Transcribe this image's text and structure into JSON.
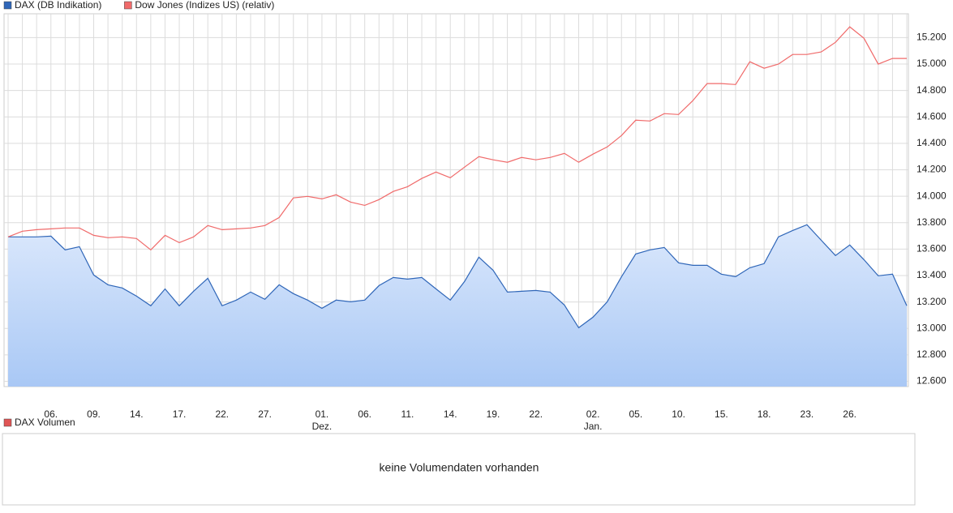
{
  "chart_data": {
    "type": "line",
    "categories": [
      null,
      null,
      null,
      "06.",
      null,
      null,
      "09.",
      null,
      null,
      "14.",
      null,
      null,
      "17.",
      null,
      null,
      "22.",
      null,
      null,
      "27.",
      null,
      null,
      null,
      "01.",
      null,
      null,
      "06.",
      null,
      null,
      "11.",
      null,
      null,
      "14.",
      null,
      null,
      "19.",
      null,
      null,
      "22.",
      null,
      null,
      null,
      "02.",
      null,
      null,
      "05.",
      null,
      null,
      "10.",
      null,
      null,
      "15.",
      null,
      null,
      "18.",
      null,
      null,
      "23.",
      null,
      null,
      "26.",
      null,
      null,
      null,
      null
    ],
    "months": [
      null,
      null,
      null,
      null,
      null,
      null,
      null,
      null,
      null,
      null,
      null,
      null,
      null,
      null,
      null,
      null,
      null,
      null,
      null,
      null,
      null,
      null,
      "Dez.",
      null,
      null,
      null,
      null,
      null,
      null,
      null,
      null,
      null,
      null,
      null,
      null,
      null,
      null,
      null,
      null,
      null,
      null,
      "Jan.",
      null,
      null,
      null,
      null,
      null,
      null,
      null,
      null,
      null,
      null,
      null,
      null,
      null,
      null,
      null,
      null,
      null,
      null,
      null,
      null,
      null,
      null
    ],
    "series": [
      {
        "name": "DAX (DB Indikation)",
        "color": "#2f66b8",
        "fill": true,
        "values": [
          13692,
          13692,
          13692,
          13698,
          13594,
          13618,
          13404,
          13330,
          13306,
          13244,
          13171,
          13299,
          13171,
          13281,
          13379,
          13171,
          13214,
          13275,
          13220,
          13330,
          13263,
          13214,
          13152,
          13214,
          13201,
          13214,
          13324,
          13385,
          13373,
          13385,
          13299,
          13214,
          13355,
          13539,
          13440,
          13275,
          13281,
          13287,
          13275,
          13177,
          13005,
          13085,
          13201,
          13391,
          13563,
          13594,
          13612,
          13496,
          13477,
          13477,
          13410,
          13391,
          13459,
          13490,
          13692,
          13741,
          13784,
          13667,
          13551,
          13631,
          13520,
          13398,
          13410,
          13171
        ]
      },
      {
        "name": "Dow Jones (Indizes US) (relativ)",
        "color": "#f06a6a",
        "fill": false,
        "values": [
          13692,
          13735,
          13747,
          13753,
          13760,
          13760,
          13704,
          13686,
          13692,
          13680,
          13594,
          13704,
          13649,
          13692,
          13778,
          13747,
          13753,
          13760,
          13778,
          13839,
          13987,
          13999,
          13980,
          14011,
          13956,
          13931,
          13974,
          14036,
          14072,
          14134,
          14183,
          14140,
          14220,
          14299,
          14275,
          14257,
          14293,
          14275,
          14293,
          14324,
          14257,
          14318,
          14373,
          14459,
          14575,
          14569,
          14625,
          14618,
          14723,
          14852,
          14852,
          14845,
          15017,
          14968,
          14999,
          15072,
          15072,
          15091,
          15164,
          15281,
          15195,
          14999,
          15042,
          15042
        ]
      }
    ],
    "ylim": [
      12560,
      15380
    ],
    "yticks": [
      {
        "value": 12600,
        "label": "12.600"
      },
      {
        "value": 12800,
        "label": "12.800"
      },
      {
        "value": 13000,
        "label": "13.000"
      },
      {
        "value": 13200,
        "label": "13.200"
      },
      {
        "value": 13400,
        "label": "13.400"
      },
      {
        "value": 13600,
        "label": "13.600"
      },
      {
        "value": 13800,
        "label": "13.800"
      },
      {
        "value": 14000,
        "label": "14.000"
      },
      {
        "value": 14200,
        "label": "14.200"
      },
      {
        "value": 14400,
        "label": "14.400"
      },
      {
        "value": 14600,
        "label": "14.600"
      },
      {
        "value": 14800,
        "label": "14.800"
      },
      {
        "value": 15000,
        "label": "15.000"
      },
      {
        "value": 15200,
        "label": "15.200"
      }
    ],
    "grid": true
  },
  "volume_panel": {
    "legend": "DAX Volumen",
    "color": "#e05555",
    "message": "keine Volumendaten vorhanden"
  }
}
